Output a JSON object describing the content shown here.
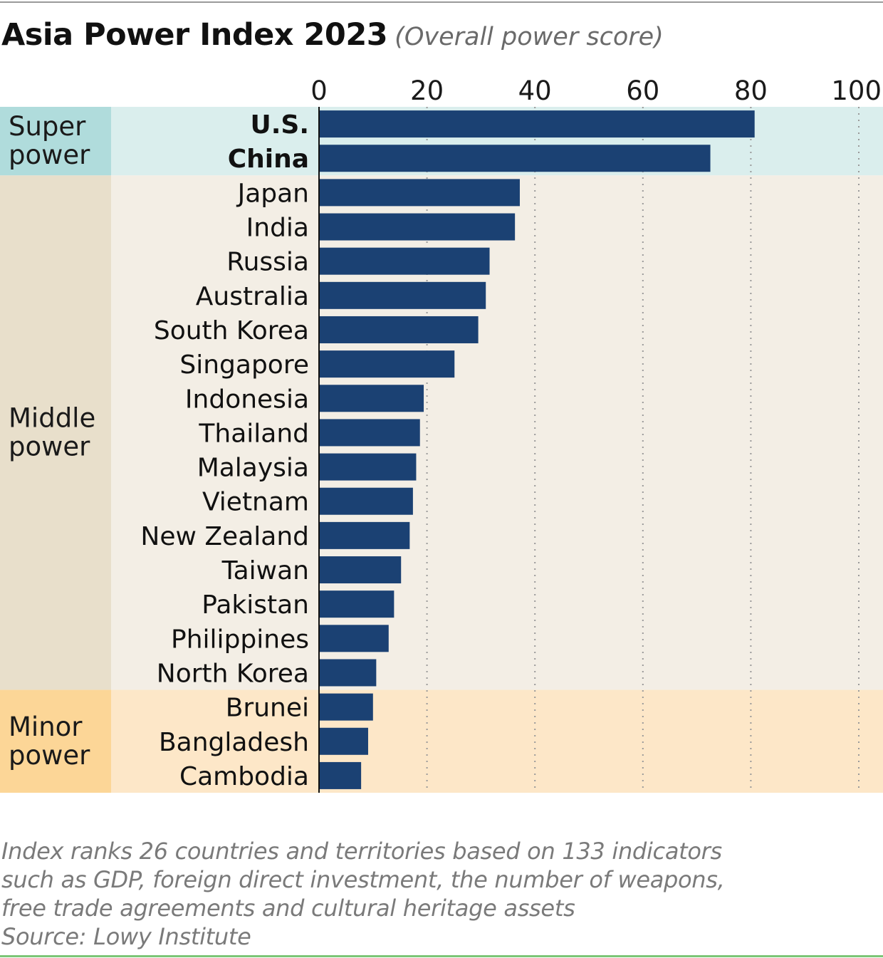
{
  "title": "Asia Power Index 2023",
  "subtitle": "(Overall power score)",
  "chart_data": {
    "type": "bar",
    "orientation": "horizontal",
    "title": "Asia Power Index 2023",
    "subtitle": "(Overall power score)",
    "categories": [
      "U.S.",
      "China",
      "Japan",
      "India",
      "Russia",
      "Australia",
      "South Korea",
      "Singapore",
      "Indonesia",
      "Thailand",
      "Malaysia",
      "Vietnam",
      "New Zealand",
      "Taiwan",
      "Pakistan",
      "Philippines",
      "North Korea",
      "Brunei",
      "Bangladesh",
      "Cambodia"
    ],
    "values": [
      80.7,
      72.5,
      37.2,
      36.3,
      31.6,
      30.9,
      29.5,
      25.1,
      19.4,
      18.7,
      18.0,
      17.4,
      16.8,
      15.2,
      13.9,
      12.9,
      10.6,
      10.0,
      9.1,
      7.8
    ],
    "bold_categories": [
      "U.S.",
      "China"
    ],
    "x_ticks": [
      "0",
      "20",
      "40",
      "60",
      "80",
      "100"
    ],
    "xlim": [
      0,
      100
    ],
    "grid": "vertical dotted",
    "bar_color": "#1b4173",
    "groups": [
      {
        "label": "Super power",
        "label_lines": [
          "Super",
          "power"
        ],
        "start": 0,
        "end": 1,
        "band_color": "#daeeed",
        "tab_color": "#b0dcdc"
      },
      {
        "label": "Middle power",
        "label_lines": [
          "Middle",
          "power"
        ],
        "start": 2,
        "end": 16,
        "band_color": "#f3eee5",
        "tab_color": "#e8dfcb"
      },
      {
        "label": "Minor power",
        "label_lines": [
          "Minor",
          "power"
        ],
        "start": 17,
        "end": 19,
        "band_color": "#fde7c8",
        "tab_color": "#fcd697"
      }
    ]
  },
  "footnote": {
    "lines": [
      "Index ranks 26 countries and territories based on 133 indicators",
      "such as GDP, foreign direct investment, the number of weapons,",
      "free trade agreements and cultural heritage assets"
    ],
    "source": "Source: Lowy Institute"
  }
}
